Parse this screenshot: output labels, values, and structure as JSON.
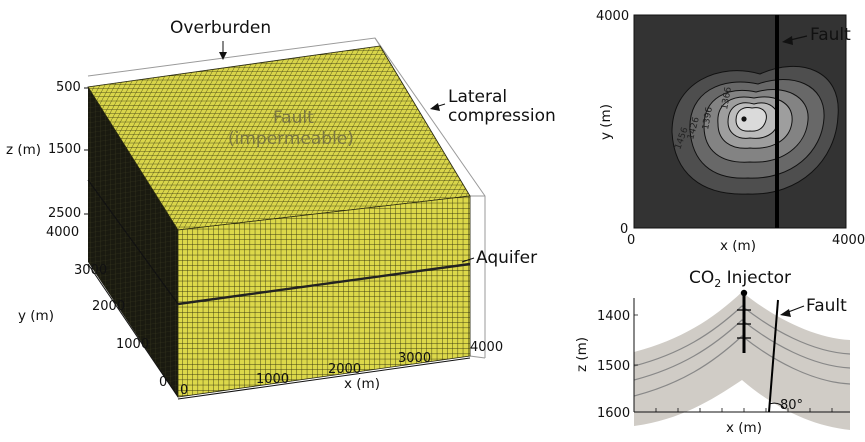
{
  "left_panel": {
    "labels": {
      "overburden": "Overburden",
      "lateral_line1": "Lateral",
      "lateral_line2": "compression",
      "fault_line1": "Fault",
      "fault_line2": "(impermeable)",
      "aquifer": "Aquifer"
    },
    "z_axis": {
      "label": "z (m)",
      "ticks": [
        "500",
        "1500",
        "2500"
      ]
    },
    "y_axis": {
      "label": "y (m)",
      "ticks": [
        "4000",
        "3000",
        "2000",
        "1000",
        "0"
      ]
    },
    "x_axis": {
      "label": "x (m)",
      "ticks": [
        "0",
        "1000",
        "2000",
        "3000",
        "4000"
      ]
    },
    "colors": {
      "mesh_fill": "#dcd84a",
      "mesh_line": "#3a3a10",
      "dark_face": "#1a1a10"
    }
  },
  "top_right_panel": {
    "y_axis": {
      "label": "y (m)",
      "ticks": [
        "4000",
        "0"
      ]
    },
    "x_axis": {
      "label": "x (m)",
      "ticks": [
        "0",
        "4000"
      ]
    },
    "fault_label": "Fault",
    "contour_labels": [
      "1366",
      "1396",
      "1426",
      "1456"
    ],
    "colors": {
      "background": "#333333"
    }
  },
  "bottom_right_panel": {
    "title_prefix": "CO",
    "title_sub": "2",
    "title_suffix": " Injector",
    "fault_label": "Fault",
    "angle_label": "80°",
    "y_axis": {
      "label": "z (m)",
      "ticks": [
        "1400",
        "1500",
        "1600"
      ]
    },
    "x_axis": {
      "label": "x (m)"
    },
    "colors": {
      "layer_fill": "#d0ccc6",
      "layer_line": "#888888"
    }
  }
}
